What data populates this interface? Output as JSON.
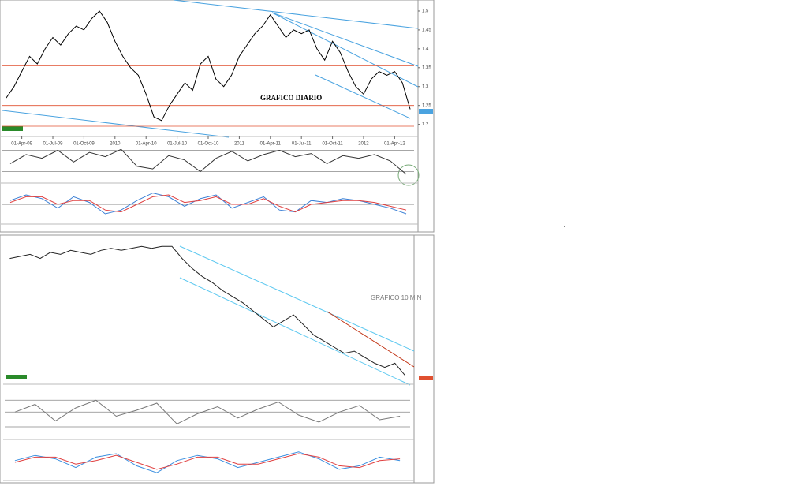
{
  "chart_data": [
    {
      "type": "line",
      "annotation": "GRAFICO DIARIO",
      "color": "#000000",
      "categories": [
        null,
        null,
        "01-Apr-09",
        null,
        null,
        null,
        "01-Jul-09",
        null,
        null,
        null,
        "01-Oct-09",
        null,
        null,
        null,
        "2010",
        null,
        null,
        null,
        "01-Apr-10",
        null,
        null,
        null,
        "01-Jul-10",
        null,
        null,
        null,
        "01-Oct-10",
        null,
        null,
        null,
        "2011",
        null,
        null,
        null,
        "01-Apr-11",
        null,
        null,
        null,
        "01-Jul-11",
        null,
        null,
        null,
        "01-Oct-11",
        null,
        null,
        null,
        "2012",
        null,
        null,
        null,
        "01-Apr-12",
        null,
        null
      ],
      "values": [
        1.27,
        1.3,
        1.34,
        1.38,
        1.36,
        1.4,
        1.43,
        1.41,
        1.44,
        1.46,
        1.45,
        1.48,
        1.5,
        1.47,
        1.42,
        1.38,
        1.35,
        1.33,
        1.28,
        1.22,
        1.21,
        1.25,
        1.28,
        1.31,
        1.29,
        1.36,
        1.38,
        1.32,
        1.3,
        1.33,
        1.38,
        1.41,
        1.44,
        1.46,
        1.49,
        1.46,
        1.43,
        1.45,
        1.44,
        1.45,
        1.4,
        1.37,
        1.42,
        1.39,
        1.34,
        1.3,
        1.28,
        1.32,
        1.34,
        1.33,
        1.34,
        1.31,
        1.24
      ],
      "ylim": [
        1.17,
        1.525
      ],
      "yticks": [
        1.2,
        1.25,
        1.3,
        1.35,
        1.4,
        1.45,
        1.5
      ],
      "hlines": [
        1.355,
        1.25,
        1.195
      ],
      "hline_color": "#e05030"
    },
    {
      "type": "line",
      "color": "#333333",
      "values": [
        45,
        62,
        55,
        70,
        48,
        66,
        58,
        72,
        40,
        35,
        60,
        52,
        30,
        55,
        68,
        50,
        62,
        70,
        58,
        64,
        45,
        60,
        55,
        62,
        50,
        25
      ],
      "ylim": [
        10,
        90
      ],
      "hlines": [
        70,
        30
      ],
      "hline_color": "#888888"
    },
    {
      "type": "line",
      "series": [
        {
          "color": "#3a7fd5",
          "values": [
            0.2,
            0.5,
            0.3,
            -0.2,
            0.4,
            0.1,
            -0.5,
            -0.3,
            0.2,
            0.6,
            0.4,
            -0.1,
            0.3,
            0.5,
            -0.2,
            0.1,
            0.4,
            -0.3,
            -0.4,
            0.2,
            0.1,
            0.3,
            0.2,
            0.0,
            -0.2,
            -0.5
          ]
        },
        {
          "color": "#e04040",
          "values": [
            0.1,
            0.4,
            0.4,
            0.0,
            0.2,
            0.2,
            -0.3,
            -0.4,
            0.0,
            0.4,
            0.5,
            0.1,
            0.2,
            0.4,
            0.0,
            0.0,
            0.3,
            -0.1,
            -0.4,
            0.0,
            0.1,
            0.2,
            0.2,
            0.1,
            -0.1,
            -0.3
          ]
        }
      ],
      "ylim": [
        -1,
        1
      ],
      "hlines": [
        0
      ],
      "hline_color": "#666666"
    },
    {
      "type": "line",
      "annotation": "GRAFICO 10 MIN",
      "color": "#222222",
      "values": [
        1.33,
        1.331,
        1.332,
        1.33,
        1.333,
        1.332,
        1.334,
        1.333,
        1.332,
        1.334,
        1.335,
        1.334,
        1.335,
        1.336,
        1.335,
        1.336,
        1.336,
        1.33,
        1.325,
        1.321,
        1.318,
        1.314,
        1.311,
        1.308,
        1.304,
        1.3,
        1.296,
        1.299,
        1.302,
        1.297,
        1.292,
        1.289,
        1.286,
        1.283,
        1.284,
        1.281,
        1.278,
        1.276,
        1.278,
        1.272
      ],
      "ylim": [
        1.268,
        1.34
      ]
    },
    {
      "type": "line",
      "color": "#777777",
      "values": [
        55,
        68,
        40,
        62,
        75,
        48,
        58,
        70,
        35,
        52,
        64,
        45,
        60,
        72,
        50,
        38,
        55,
        66,
        42,
        48
      ],
      "ylim": [
        10,
        90
      ],
      "hlines": [
        75,
        55,
        30
      ],
      "hline_color": "#888888"
    },
    {
      "type": "line",
      "series": [
        {
          "color": "#3a8fe0",
          "values": [
            0.1,
            0.4,
            0.2,
            -0.3,
            0.3,
            0.5,
            -0.2,
            -0.6,
            0.1,
            0.4,
            0.2,
            -0.3,
            0.0,
            0.3,
            0.6,
            0.2,
            -0.4,
            -0.2,
            0.3,
            0.1
          ]
        },
        {
          "color": "#e04040",
          "values": [
            0.0,
            0.3,
            0.3,
            -0.1,
            0.1,
            0.4,
            0.0,
            -0.4,
            -0.1,
            0.3,
            0.3,
            -0.1,
            -0.1,
            0.2,
            0.5,
            0.3,
            -0.2,
            -0.3,
            0.1,
            0.2
          ]
        }
      ],
      "ylim": [
        -1,
        1
      ]
    }
  ]
}
